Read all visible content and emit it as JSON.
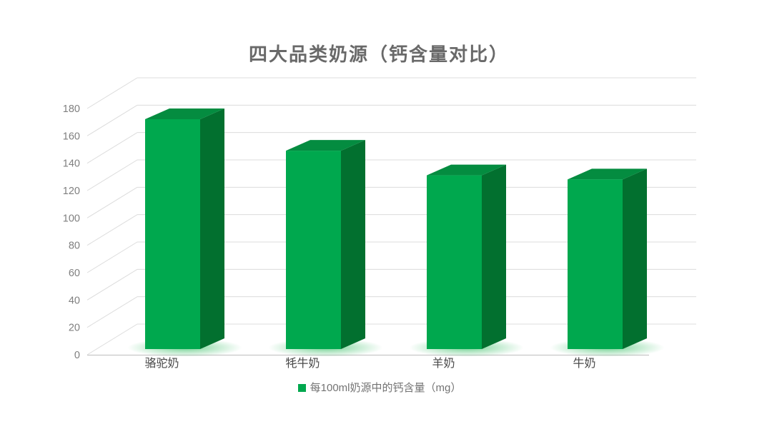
{
  "page": {
    "background": "#ffffff"
  },
  "chart_data": {
    "type": "bar",
    "style": "3d-column",
    "title": "四大品类奶源（钙含量对比）",
    "categories": [
      "骆驼奶",
      "牦牛奶",
      "羊奶",
      "牛奶"
    ],
    "series": [
      {
        "name": "每100ml奶源中的钙含量（mg）",
        "values": [
          168,
          145,
          127,
          124
        ]
      }
    ],
    "xlabel": "",
    "ylabel": "",
    "ylim": [
      0,
      180
    ],
    "yticks": [
      0,
      20,
      40,
      60,
      80,
      100,
      120,
      140,
      160,
      180
    ],
    "grid": true,
    "legend_position": "bottom",
    "colors": {
      "bar_front": "#00A84E",
      "bar_top": "#048C40",
      "bar_side": "#02702F",
      "bar_glow": "#57C97D",
      "gridline": "#DCDCDC",
      "baseline": "#C6C6C6",
      "axis_text": "#7F7F7F",
      "category_text": "#484848",
      "title_text": "#696969",
      "legend_text": "#737373"
    }
  }
}
